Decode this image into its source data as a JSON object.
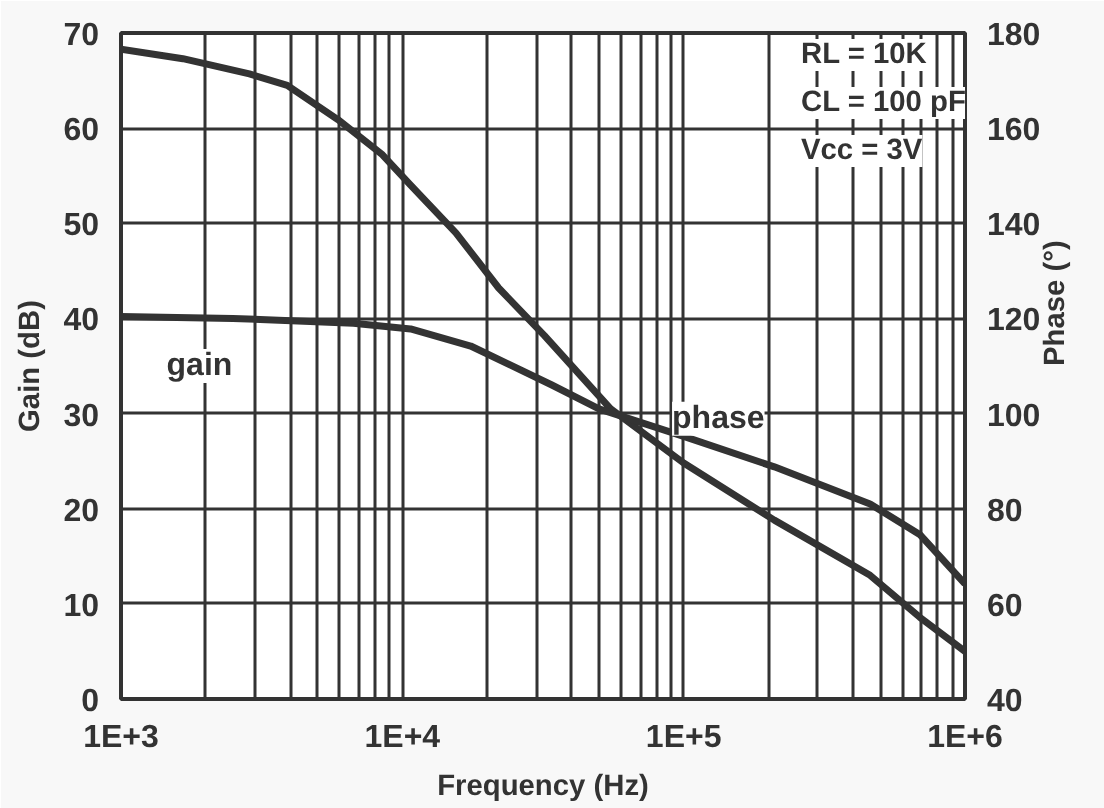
{
  "chart_data": {
    "type": "line",
    "xlabel": "Frequency (Hz)",
    "ylabel": "Gain (dB)",
    "y2label": "Phase (°)",
    "log": "x",
    "grid": true,
    "marker": "none",
    "line_style": "solid",
    "xlim": [
      1000,
      1000000
    ],
    "xticks": [
      {
        "value": 1000,
        "label": "1E+3"
      },
      {
        "value": 10000,
        "label": "1E+4"
      },
      {
        "value": 100000,
        "label": "1E+5"
      },
      {
        "value": 1000000,
        "label": "1E+6"
      }
    ],
    "ylim": [
      0,
      70
    ],
    "yticks": [
      0,
      10,
      20,
      30,
      40,
      50,
      60,
      70
    ],
    "y2lim": [
      40,
      180
    ],
    "y2ticks": [
      40,
      60,
      80,
      100,
      120,
      140,
      160,
      180
    ],
    "series": [
      {
        "color": "#333333",
        "x": [
          1000,
          1660,
          2860,
          3900,
          5900,
          8500,
          10700,
          15500,
          22000,
          32000,
          55000,
          100000,
          210000,
          460000,
          690000,
          1000000
        ],
        "values": [
          68.3,
          67.3,
          65.7,
          64.5,
          60.9,
          57.2,
          54.0,
          49.0,
          43.2,
          38.2,
          30.5,
          24.8,
          18.8,
          13.0,
          8.6,
          5.0
        ]
      },
      {
        "name": "phase",
        "color": "#333333",
        "axis": "y2",
        "x": [
          1000,
          2500,
          6700,
          10700,
          17500,
          34000,
          50000,
          100000,
          210000,
          460000,
          690000,
          1000000
        ],
        "values": [
          120.4,
          120,
          119,
          117.8,
          114.2,
          106,
          101,
          95.2,
          88.8,
          81,
          74.6,
          64.2
        ]
      }
    ],
    "annotations": [
      {
        "text": "gain",
        "x": 1900,
        "y": 35
      },
      "RL = 10K",
      "CL = 100 pF",
      "Vcc = 3V"
    ]
  }
}
